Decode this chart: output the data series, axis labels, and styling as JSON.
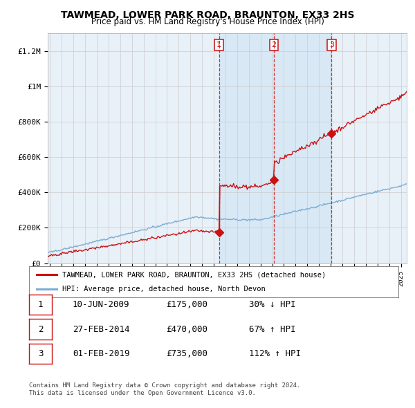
{
  "title": "TAWMEAD, LOWER PARK ROAD, BRAUNTON, EX33 2HS",
  "subtitle": "Price paid vs. HM Land Registry's House Price Index (HPI)",
  "legend_label_red": "TAWMEAD, LOWER PARK ROAD, BRAUNTON, EX33 2HS (detached house)",
  "legend_label_blue": "HPI: Average price, detached house, North Devon",
  "transactions": [
    {
      "num": "1",
      "date": "10-JUN-2009",
      "price_str": "£175,000",
      "pct": "30%",
      "dir": "↓",
      "year_x": 2009.45,
      "price": 175000
    },
    {
      "num": "2",
      "date": "27-FEB-2014",
      "price_str": "£470,000",
      "pct": "67%",
      "dir": "↑",
      "year_x": 2014.15,
      "price": 470000
    },
    {
      "num": "3",
      "date": "01-FEB-2019",
      "price_str": "£735,000",
      "pct": "112%",
      "dir": "↑",
      "year_x": 2019.08,
      "price": 735000
    }
  ],
  "footnote1": "Contains HM Land Registry data © Crown copyright and database right 2024.",
  "footnote2": "This data is licensed under the Open Government Licence v3.0.",
  "ylim": [
    0,
    1300000
  ],
  "yticks": [
    0,
    200000,
    400000,
    600000,
    800000,
    1000000,
    1200000
  ],
  "ytick_labels": [
    "£0",
    "£200K",
    "£400K",
    "£600K",
    "£800K",
    "£1M",
    "£1.2M"
  ],
  "xlim_left": 1994.8,
  "xlim_right": 2025.5,
  "hpi_color": "#7aadd4",
  "price_color": "#cc1111",
  "vline_color": "#cc1111",
  "shade_color": "#d8e8f5",
  "grid_color": "#cccccc",
  "bg_color": "#e8f0f8",
  "chart_bg": "#ffffff",
  "hpi_seed": 42,
  "n_points": 370
}
